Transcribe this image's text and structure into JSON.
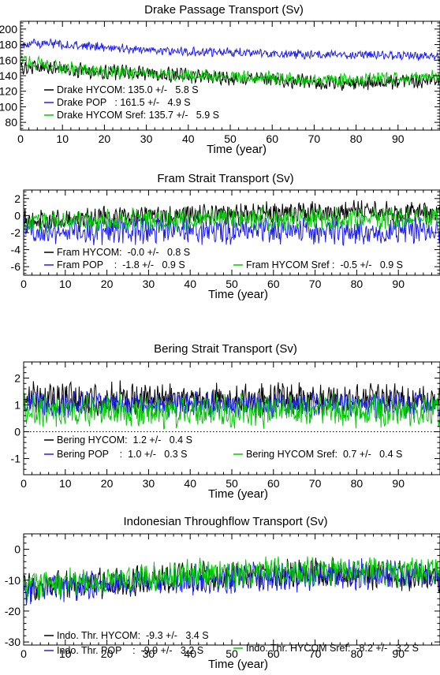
{
  "chart_data": [
    {
      "type": "line",
      "title": "Drake Passage Transport (Sv)",
      "xlabel": "Time (year)",
      "ylabel": "",
      "xlim": [
        0,
        100
      ],
      "ylim": [
        70,
        210
      ],
      "xticks": [
        0,
        10,
        20,
        30,
        40,
        50,
        60,
        70,
        80,
        90
      ],
      "yticks": [
        80,
        100,
        120,
        140,
        160,
        180,
        200
      ],
      "zero_line": false,
      "series": [
        {
          "name": "Drake HYCOM",
          "legend": "Drake HYCOM: 135.0 +/-   5.8 S",
          "color": "#000000",
          "points": [
            [
              0,
              150
            ],
            [
              5,
              152
            ],
            [
              10,
              148
            ],
            [
              20,
              145
            ],
            [
              30,
              143
            ],
            [
              40,
              140
            ],
            [
              50,
              137
            ],
            [
              60,
              135
            ],
            [
              70,
              131
            ],
            [
              80,
              130
            ],
            [
              90,
              132
            ],
            [
              100,
              135
            ]
          ],
          "amp": 10
        },
        {
          "name": "Drake POP",
          "legend": "Drake POP   : 161.5 +/-   4.9 S",
          "color": "#2020ee",
          "points": [
            [
              0,
              180
            ],
            [
              5,
              182
            ],
            [
              10,
              180
            ],
            [
              20,
              177
            ],
            [
              30,
              173
            ],
            [
              40,
              171
            ],
            [
              50,
              170
            ],
            [
              60,
              168
            ],
            [
              70,
              167
            ],
            [
              80,
              167
            ],
            [
              90,
              166
            ],
            [
              100,
              165
            ]
          ],
          "amp": 6
        },
        {
          "name": "Drake HYCOM Sref",
          "legend": "Drake HYCOM Sref: 135.7 +/-   5.9 S",
          "color": "#00cc00",
          "points": [
            [
              0,
              160
            ],
            [
              5,
              155
            ],
            [
              10,
              150
            ],
            [
              20,
              145
            ],
            [
              30,
              143
            ],
            [
              40,
              141
            ],
            [
              50,
              139
            ],
            [
              60,
              137
            ],
            [
              70,
              134
            ],
            [
              80,
              135
            ],
            [
              90,
              137
            ],
            [
              100,
              140
            ]
          ],
          "amp": 9
        }
      ]
    },
    {
      "type": "line",
      "title": "Fram Strait Transport (Sv)",
      "xlabel": "Time (year)",
      "ylabel": "",
      "xlim": [
        0,
        100
      ],
      "ylim": [
        -7,
        3
      ],
      "xticks": [
        0,
        10,
        20,
        30,
        40,
        50,
        60,
        70,
        80,
        90
      ],
      "yticks": [
        -6,
        -4,
        -2,
        0,
        2
      ],
      "zero_line": false,
      "series": [
        {
          "name": "Fram HYCOM",
          "legend": "Fram HYCOM:  -0.0 +/-   0.8 S",
          "color": "#000000",
          "points": [
            [
              0,
              -0.6
            ],
            [
              20,
              -0.3
            ],
            [
              40,
              0.0
            ],
            [
              60,
              0.3
            ],
            [
              80,
              0.4
            ],
            [
              100,
              0.3
            ]
          ],
          "amp": 1.4
        },
        {
          "name": "Fram POP",
          "legend": "Fram POP    :  -1.8 +/-   0.9 S",
          "color": "#2020ee",
          "points": [
            [
              0,
              -1.7
            ],
            [
              50,
              -1.8
            ],
            [
              100,
              -1.8
            ]
          ],
          "amp": 1.7
        },
        {
          "name": "Fram HYCOM Sref",
          "legend": "Fram HYCOM Sref :  -0.5 +/-   0.9 S",
          "color": "#00cc00",
          "points": [
            [
              0,
              -0.8
            ],
            [
              50,
              -0.4
            ],
            [
              100,
              -0.3
            ]
          ],
          "amp": 1.4
        }
      ]
    },
    {
      "type": "line",
      "title": "Bering Strait Transport (Sv)",
      "xlabel": "Time (year)",
      "ylabel": "",
      "xlim": [
        0,
        100
      ],
      "ylim": [
        -1.6,
        2.6
      ],
      "xticks": [
        0,
        10,
        20,
        30,
        40,
        50,
        60,
        70,
        80,
        90
      ],
      "yticks": [
        -1,
        0,
        1,
        2
      ],
      "zero_line": true,
      "series": [
        {
          "name": "Bering HYCOM",
          "legend": "Bering HYCOM:  1.2 +/-   0.4 S",
          "color": "#000000",
          "points": [
            [
              0,
              1.2
            ],
            [
              100,
              1.2
            ]
          ],
          "amp": 0.65
        },
        {
          "name": "Bering POP",
          "legend": "Bering POP    :  1.0 +/-   0.3 S",
          "color": "#2020ee",
          "points": [
            [
              0,
              1.0
            ],
            [
              100,
              1.0
            ]
          ],
          "amp": 0.5
        },
        {
          "name": "Bering HYCOM Sref",
          "legend": "Bering HYCOM Sref:  0.7 +/-   0.4 S",
          "color": "#00cc00",
          "points": [
            [
              0,
              0.8
            ],
            [
              100,
              0.8
            ]
          ],
          "amp": 0.65
        }
      ]
    },
    {
      "type": "line",
      "title": "Indonesian Throughflow Transport (Sv)",
      "xlabel": "Time (year)",
      "ylabel": "",
      "xlim": [
        0,
        100
      ],
      "ylim": [
        -31,
        5
      ],
      "xticks": [
        0,
        10,
        20,
        30,
        40,
        50,
        60,
        70,
        80,
        90
      ],
      "yticks": [
        -30,
        -20,
        -10,
        0
      ],
      "zero_line": false,
      "series": [
        {
          "name": "Indo. Thr. HYCOM",
          "legend": "Indo. Thr. HYCOM:  -9.3 +/-   3.4 S",
          "color": "#000000",
          "points": [
            [
              0,
              -13
            ],
            [
              20,
              -11
            ],
            [
              40,
              -9
            ],
            [
              60,
              -8
            ],
            [
              80,
              -8
            ],
            [
              100,
              -9
            ]
          ],
          "amp": 5
        },
        {
          "name": "Indo. Thr. POP",
          "legend": "Indo. Thr. POP    :  -9.9 +/-   3.2 S",
          "color": "#2020ee",
          "points": [
            [
              0,
              -13
            ],
            [
              20,
              -11
            ],
            [
              40,
              -10
            ],
            [
              60,
              -9
            ],
            [
              80,
              -8
            ],
            [
              100,
              -9
            ]
          ],
          "amp": 5
        },
        {
          "name": "Indo. Thr. HYCOM Sref",
          "legend": "Indo. Thr. HYCOM Sref:  -8.2 +/-   3.2 S",
          "color": "#00cc00",
          "points": [
            [
              0,
              -12
            ],
            [
              20,
              -10
            ],
            [
              40,
              -8
            ],
            [
              60,
              -7
            ],
            [
              80,
              -7
            ],
            [
              100,
              -7
            ]
          ],
          "amp": 5
        }
      ]
    }
  ]
}
